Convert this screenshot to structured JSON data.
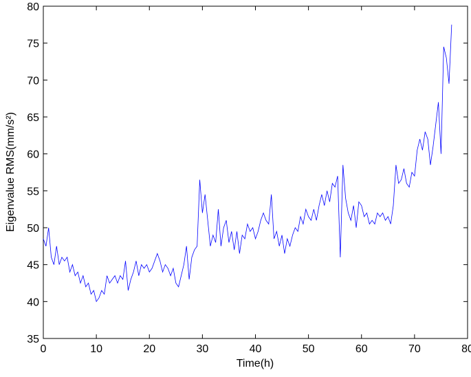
{
  "chart_data": {
    "type": "line",
    "xlabel": "Time(h)",
    "ylabel": "Eigenvalue RMS(mm/s²)",
    "xlim": [
      0,
      80
    ],
    "xticks": [
      0,
      10,
      20,
      30,
      40,
      50,
      60,
      70,
      80
    ],
    "ylim": [
      35,
      80
    ],
    "yticks": [
      35,
      40,
      45,
      50,
      55,
      60,
      65,
      70,
      75,
      80
    ],
    "x": [
      0,
      0.5,
      1,
      1.5,
      2,
      2.5,
      3,
      3.5,
      4,
      4.5,
      5,
      5.5,
      6,
      6.5,
      7,
      7.5,
      8,
      8.5,
      9,
      9.5,
      10,
      10.5,
      11,
      11.5,
      12,
      12.5,
      13,
      13.5,
      14,
      14.5,
      15,
      15.5,
      16,
      16.5,
      17,
      17.5,
      18,
      18.5,
      19,
      19.5,
      20,
      20.5,
      21,
      21.5,
      22,
      22.5,
      23,
      23.5,
      24,
      24.5,
      25,
      25.5,
      26,
      26.5,
      27,
      27.5,
      28,
      28.5,
      29,
      29.5,
      30,
      30.5,
      31,
      31.5,
      32,
      32.5,
      33,
      33.5,
      34,
      34.5,
      35,
      35.5,
      36,
      36.5,
      37,
      37.5,
      38,
      38.5,
      39,
      39.5,
      40,
      40.5,
      41,
      41.5,
      42,
      42.5,
      43,
      43.5,
      44,
      44.5,
      45,
      45.5,
      46,
      46.5,
      47,
      47.5,
      48,
      48.5,
      49,
      49.5,
      50,
      50.5,
      51,
      51.5,
      52,
      52.5,
      53,
      53.5,
      54,
      54.5,
      55,
      55.5,
      56,
      56.5,
      57,
      57.5,
      58,
      58.5,
      59,
      59.5,
      60,
      60.5,
      61,
      61.5,
      62,
      62.5,
      63,
      63.5,
      64,
      64.5,
      65,
      65.5,
      66,
      66.5,
      67,
      67.5,
      68,
      68.5,
      69,
      69.5,
      70,
      70.5,
      71,
      71.5,
      72,
      72.5,
      73,
      73.5,
      74,
      74.5,
      75,
      75.5,
      76,
      76.5,
      77
    ],
    "series": [
      {
        "color": "#0000ff",
        "values": [
          48.5,
          47.5,
          50,
          46,
          45,
          47.5,
          45,
          46,
          45.5,
          46,
          44,
          45,
          43.5,
          44,
          42.5,
          43.5,
          42,
          42.5,
          41,
          41.5,
          40,
          40.5,
          41.5,
          41,
          43.5,
          42.5,
          43,
          43.5,
          42.5,
          43.5,
          43,
          45.5,
          41.5,
          43,
          44,
          45.5,
          43.5,
          45,
          44.5,
          45,
          44,
          44.5,
          45.5,
          46.5,
          45.5,
          44,
          45,
          44.5,
          43.5,
          44.5,
          42.5,
          42,
          43.5,
          45,
          47.5,
          43,
          46,
          47,
          47.5,
          56.5,
          52,
          54.5,
          51,
          47.5,
          49,
          48,
          52.5,
          47.5,
          50,
          51,
          48,
          49.5,
          47,
          49.5,
          46.5,
          49,
          48.5,
          50.5,
          49.5,
          50,
          48.5,
          49.5,
          51,
          52,
          51,
          50.5,
          54.5,
          48.5,
          49.5,
          47.5,
          49,
          46.5,
          48.5,
          47.5,
          49,
          50,
          49.5,
          51.5,
          50.5,
          52.5,
          51.5,
          51,
          52.5,
          51,
          53,
          54.5,
          53,
          55,
          53.5,
          56,
          55.5,
          57,
          46,
          58.5,
          54,
          52,
          51,
          53,
          50,
          53.5,
          53,
          51.5,
          52,
          50.5,
          51,
          50.5,
          52,
          51.5,
          52,
          51,
          51.5,
          50.5,
          53,
          58.5,
          56,
          56.5,
          58,
          56,
          55.5,
          57.5,
          57,
          60.5,
          62,
          60.5,
          63,
          62,
          58.5,
          61,
          64,
          67,
          60,
          74.5,
          73,
          69.5,
          77.5
        ]
      }
    ]
  }
}
